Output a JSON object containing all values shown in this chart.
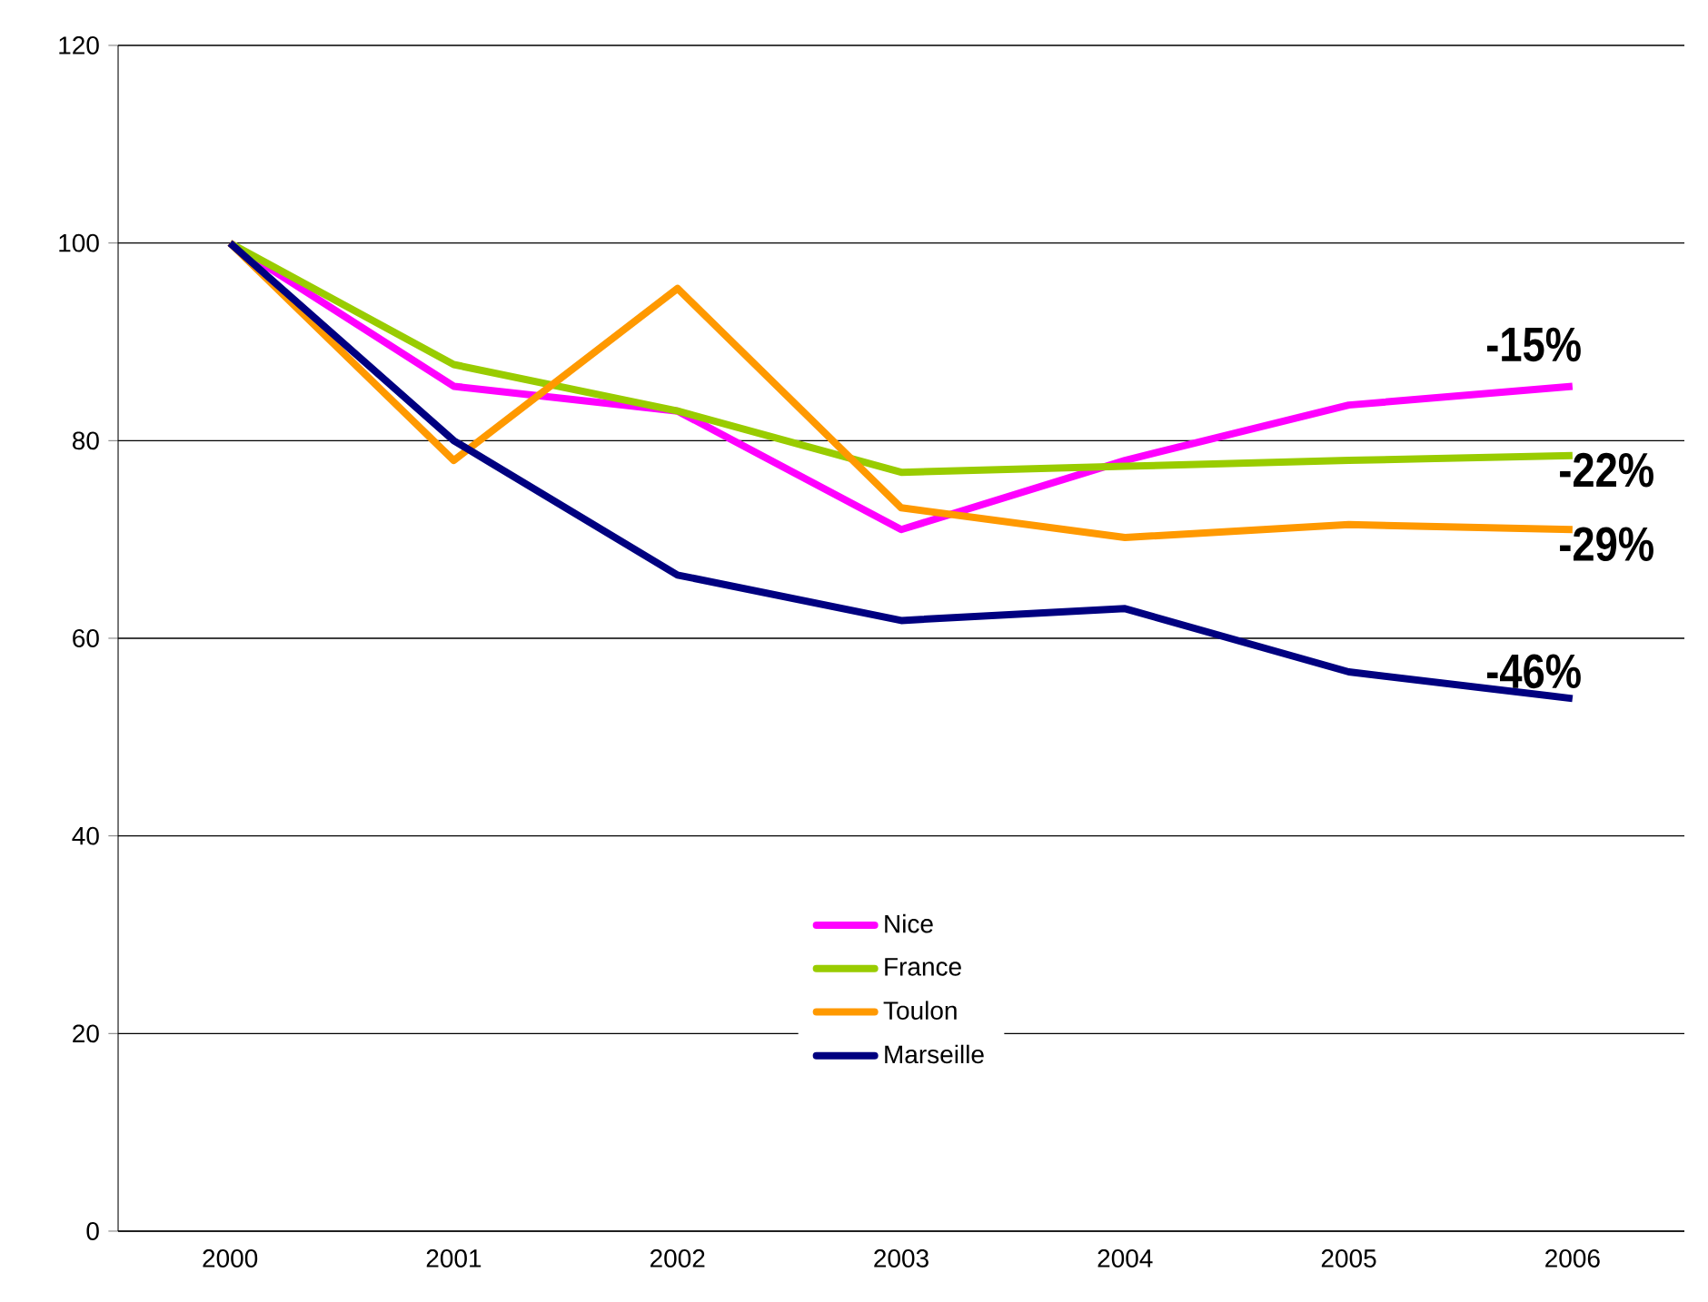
{
  "chart_data": {
    "type": "line",
    "categories": [
      "2000",
      "2001",
      "2002",
      "2003",
      "2004",
      "2005",
      "2006"
    ],
    "series": [
      {
        "name": "Nice",
        "color": "#ff00ff",
        "values": [
          100,
          85.5,
          83,
          71,
          78,
          83.6,
          85.5
        ]
      },
      {
        "name": "France",
        "color": "#99cc00",
        "values": [
          100,
          87.7,
          83,
          76.8,
          77.4,
          78,
          78.5
        ]
      },
      {
        "name": "Toulon",
        "color": "#ff9900",
        "values": [
          100,
          78,
          95.4,
          73.2,
          70.2,
          71.5,
          71
        ]
      },
      {
        "name": "Marseille",
        "color": "#000080",
        "values": [
          100,
          80,
          66.4,
          61.8,
          63,
          56.6,
          53.9
        ]
      }
    ],
    "annotations": [
      {
        "text": "-15%",
        "x": "2006",
        "y": 85.5
      },
      {
        "text": "-22%",
        "x": "2006",
        "y": 78.5
      },
      {
        "text": "-29%",
        "x": "2006",
        "y": 71
      },
      {
        "text": "-46%",
        "x": "2006",
        "y": 53.9
      }
    ],
    "ylim": [
      0,
      120
    ],
    "yticks": [
      0,
      20,
      40,
      60,
      80,
      100,
      120
    ],
    "grid": "y",
    "legend": "bottom",
    "marker": "none",
    "line_style": "solid"
  }
}
